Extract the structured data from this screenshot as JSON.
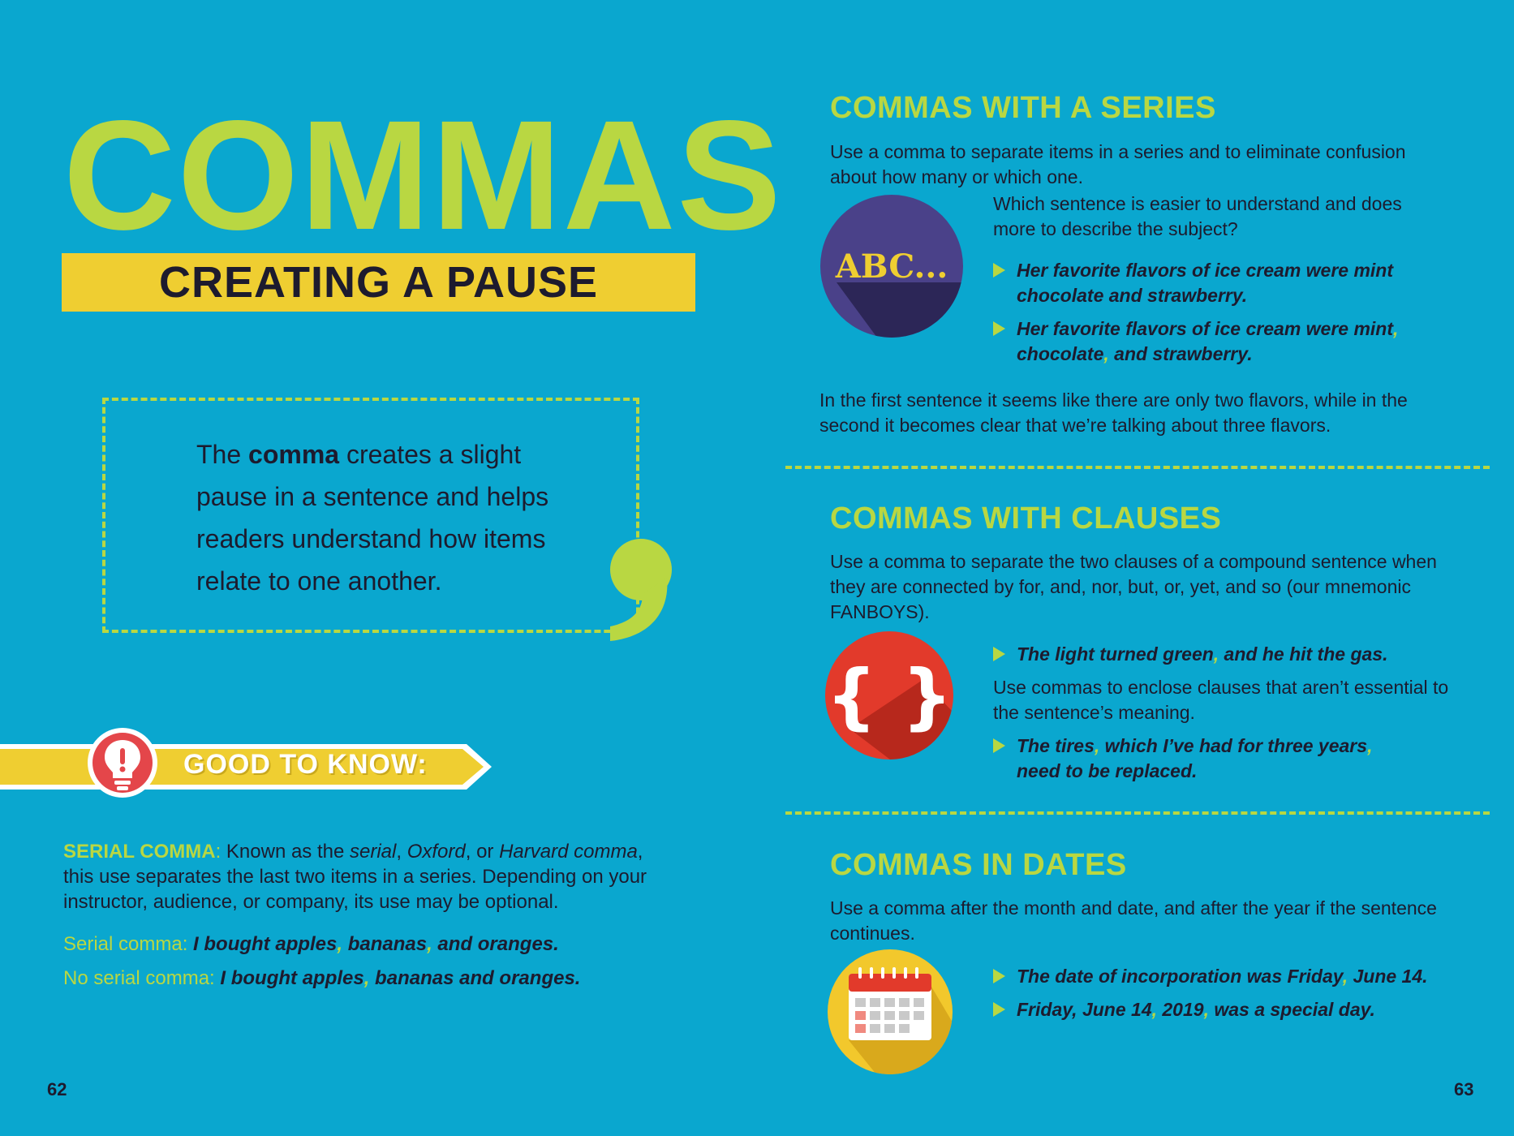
{
  "left": {
    "title": "COMMAS",
    "subtitle": "CREATING A PAUSE",
    "box": {
      "pre": "The ",
      "bold": "comma",
      "post": " creates a slight pause in a sentence and helps readers understand how items relate to one another."
    },
    "good_to_know": {
      "label": "GOOD TO KNOW:",
      "term": "SERIAL COMMA",
      "colon": ":",
      "text_1": " Known as the ",
      "it_1": "serial",
      "text_2": ", ",
      "it_2": "Oxford",
      "text_3": ", or ",
      "it_3": "Harvard comma",
      "text_4": ", this use separates the last two items in a series. Depending on your instructor, audience, or company, its use may be optional.",
      "ex1_label": "Serial comma: ",
      "ex1_a": "I bought apples",
      "ex1_b": " bananas",
      "ex1_c": " and oranges.",
      "ex2_label": "No serial comma: ",
      "ex2_a": "I bought apples",
      "ex2_b": " bananas and oranges.",
      "comma": ","
    },
    "page_number": "62"
  },
  "right": {
    "series": {
      "title": "COMMAS WITH A SERIES",
      "intro": "Use a comma to separate items in a series and to eliminate confusion about how many or which one.",
      "icon_text": "ABC...",
      "question": "Which sentence is easier to understand and does more to describe the subject?",
      "b1": "Her favorite flavors of ice cream were mint chocolate and strawberry.",
      "b2_a": "Her favorite flavors of ice cream were mint",
      "b2_b": "chocolate",
      "b2_c": " and strawberry.",
      "outro": "In the first sentence it seems like there are only two flavors, while in the second it becomes clear that we’re talking about three flavors."
    },
    "clauses": {
      "title": "COMMAS WITH CLAUSES",
      "intro": "Use a comma to separate the two clauses of a compound sentence when they are connected by for, and, nor, but, or, yet, and so (our mnemonic FANBOYS).",
      "icon_text": "{ }",
      "b1_a": "The light turned green",
      "b1_b": " and he hit the gas.",
      "middle": "Use commas to enclose clauses that aren’t essential to the sentence’s meaning.",
      "b2_a": "The tires",
      "b2_b": " which I’ve had for three years",
      "b2_c": "need to be replaced."
    },
    "dates": {
      "title": "COMMAS IN DATES",
      "intro": "Use a comma after the month and date, and after the year if the sentence continues.",
      "b1_a": "The date of incorporation was Friday",
      "b1_b": " June 14.",
      "b2_a": "Friday, June 14",
      "b2_b": " 2019",
      "b2_c": " was a special day."
    },
    "comma": ",",
    "page_number": "63"
  },
  "colors": {
    "background": "#0aa7cf",
    "lime": "#b9d742",
    "yellow": "#efce31",
    "dark": "#1d1b2e",
    "abc_circle": "#3a3570",
    "braces_circle": "#e23a2b",
    "calendar_circle": "#f2c82c"
  },
  "icons": [
    "lightbulb-icon",
    "abc-icon",
    "curly-braces-icon",
    "calendar-icon",
    "big-comma-icon"
  ]
}
